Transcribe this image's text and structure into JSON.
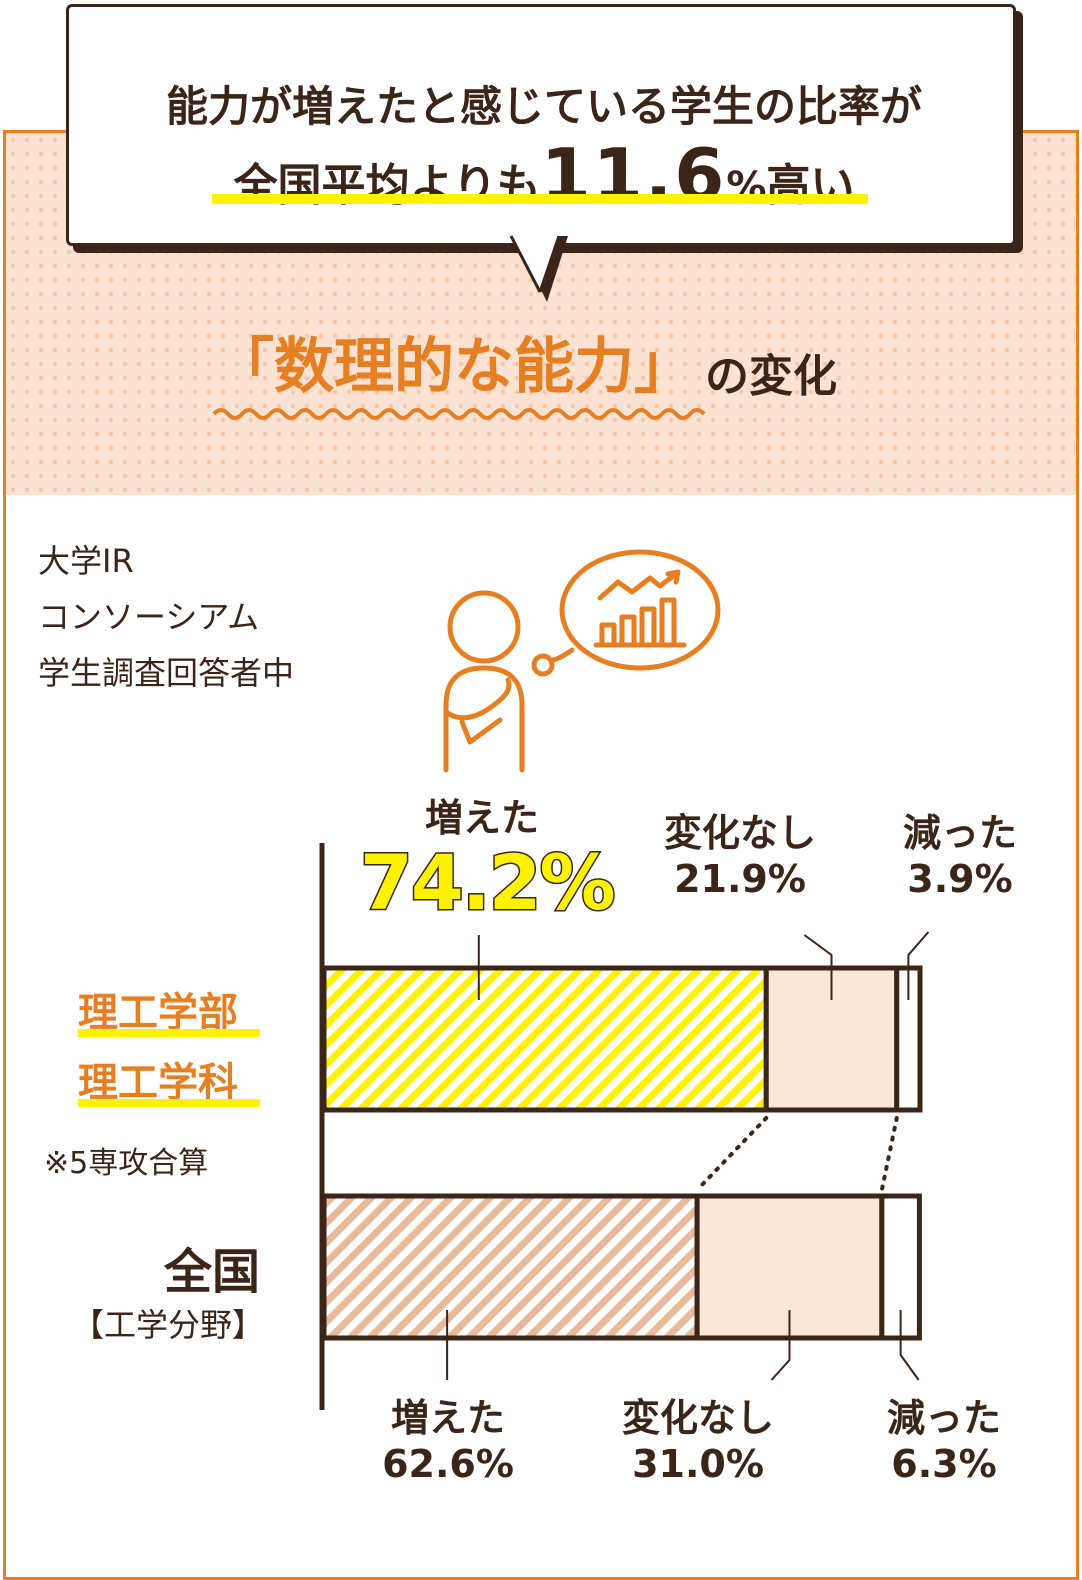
{
  "headline": {
    "line1": "能力が増えたと感じている学生の比率が",
    "line2_pre": "全国平均よりも",
    "line2_number": "11.6",
    "line2_percent": "%",
    "line2_post": "高い"
  },
  "section_title": "「数理的な能力」",
  "section_title_suffix": "の変化",
  "source": {
    "line1": "大学IR",
    "line2": "コンソーシアム",
    "line3": "学生調査回答者中"
  },
  "rows": {
    "science": {
      "label1": "理工学部",
      "label2": "理工学科",
      "note": "※5専攻合算"
    },
    "national": {
      "title": "全国",
      "subtitle": "【工学分野】"
    }
  },
  "chart_data": {
    "type": "bar",
    "stacked": true,
    "orientation": "horizontal",
    "categories": [
      "理工学部 理工学科",
      "全国【工学分野】"
    ],
    "series": [
      {
        "name": "増えた",
        "values": [
          74.2,
          62.6
        ]
      },
      {
        "name": "変化なし",
        "values": [
          21.9,
          31.0
        ]
      },
      {
        "name": "減った",
        "values": [
          3.9,
          6.3
        ]
      }
    ],
    "labels": {
      "top": [
        {
          "name": "増えた",
          "value": "74.2%"
        },
        {
          "name": "変化なし",
          "value": "21.9%"
        },
        {
          "name": "減った",
          "value": "3.9%"
        }
      ],
      "bottom": [
        {
          "name": "増えた",
          "value": "62.6%"
        },
        {
          "name": "変化なし",
          "value": "31.0%"
        },
        {
          "name": "減った",
          "value": "6.3%"
        }
      ]
    },
    "colors": {
      "increase_top": "#fff200",
      "increase_bottom": "#e8b99a",
      "no_change": "#fbe6d8",
      "decrease": "#ffffff",
      "outline": "#3b2418",
      "accent": "#e67e22"
    }
  }
}
